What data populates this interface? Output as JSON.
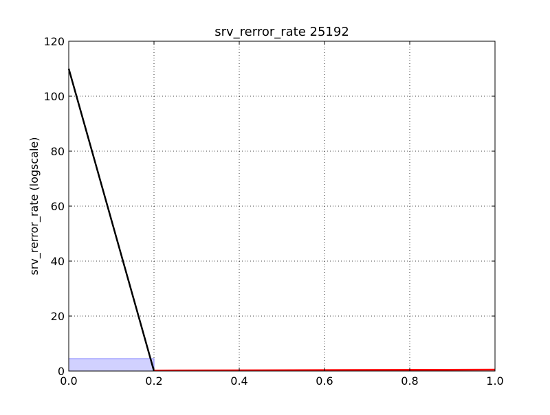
{
  "chart_data": {
    "type": "line",
    "title": "srv_rerror_rate 25192",
    "xlabel": "",
    "ylabel": "srv_rerror_rate (logscale)",
    "xlim": [
      0.0,
      1.0
    ],
    "ylim": [
      0,
      120
    ],
    "grid": true,
    "x_ticks": [
      "0.0",
      "0.2",
      "0.4",
      "0.6",
      "0.8",
      "1.0"
    ],
    "y_ticks": [
      "0",
      "20",
      "40",
      "60",
      "80",
      "100",
      "120"
    ],
    "bars": [
      {
        "x0": 0.0,
        "x1": 0.2,
        "value": 4.5
      }
    ],
    "series": [
      {
        "x": [
          0.0,
          0.2
        ],
        "y": [
          110,
          0
        ]
      },
      {
        "x": [
          0.2,
          1.0
        ],
        "y": [
          0.2,
          0.5
        ]
      }
    ],
    "colors": {
      "bar_fill": "#ccccff",
      "bar_stroke": "#8080ff",
      "line_main": "#000000",
      "line_second": "#ff0000",
      "grid": "#000000"
    }
  }
}
